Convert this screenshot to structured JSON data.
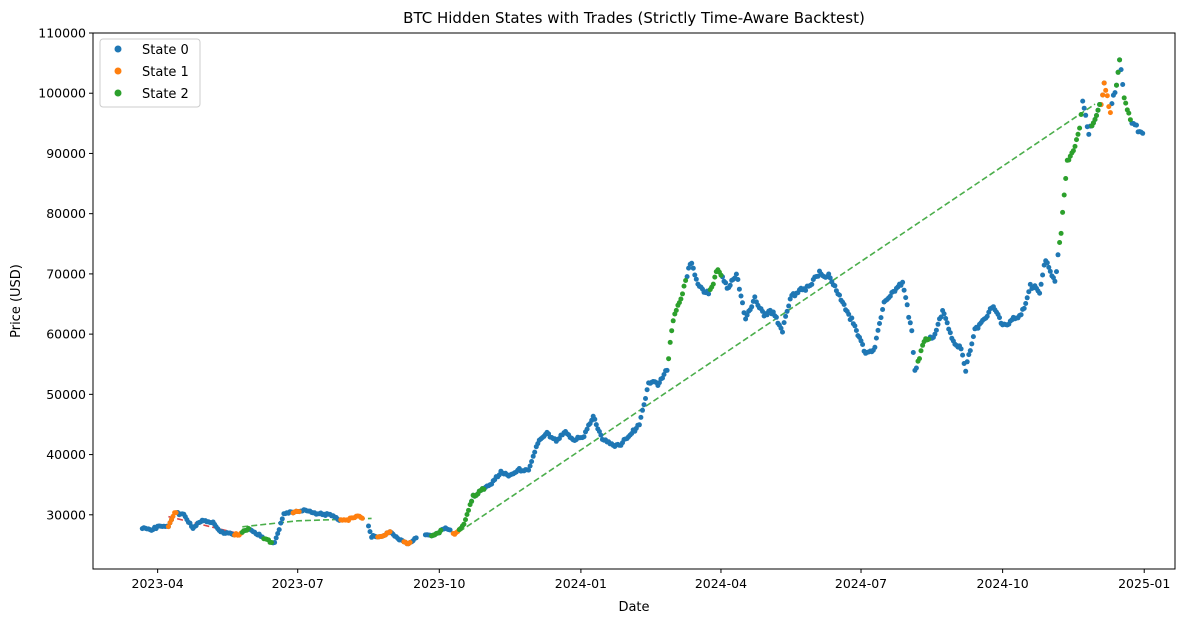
{
  "chart_data": {
    "type": "scatter",
    "title": "BTC Hidden States with Trades (Strictly Time-Aware Backtest)",
    "xlabel": "Date",
    "ylabel": "Price (USD)",
    "x_type": "date",
    "xlim": [
      "2023-02-18",
      "2025-01-21"
    ],
    "ylim": [
      21000,
      110000
    ],
    "x_ticks": [
      "2023-04-01",
      "2023-07-01",
      "2023-10-01",
      "2024-01-01",
      "2024-04-01",
      "2024-07-01",
      "2024-10-01",
      "2025-01-01"
    ],
    "x_tick_labels": [
      "2023-04",
      "2023-07",
      "2023-10",
      "2024-01",
      "2024-04",
      "2024-07",
      "2024-10",
      "2025-01"
    ],
    "y_ticks": [
      30000,
      40000,
      50000,
      60000,
      70000,
      80000,
      90000,
      100000,
      110000
    ],
    "y_tick_labels": [
      "30000",
      "40000",
      "50000",
      "60000",
      "70000",
      "80000",
      "90000",
      "100000",
      "110000"
    ],
    "grid": false,
    "legend_position": "top-left",
    "price_path": [
      [
        "2023-03-22",
        27800
      ],
      [
        "2023-03-28",
        27300
      ],
      [
        "2023-04-02",
        28300
      ],
      [
        "2023-04-08",
        28000
      ],
      [
        "2023-04-12",
        30200
      ],
      [
        "2023-04-18",
        30300
      ],
      [
        "2023-04-24",
        27600
      ],
      [
        "2023-04-30",
        29200
      ],
      [
        "2023-05-06",
        28900
      ],
      [
        "2023-05-12",
        27000
      ],
      [
        "2023-05-18",
        27100
      ],
      [
        "2023-05-24",
        26500
      ],
      [
        "2023-05-30",
        27800
      ],
      [
        "2023-06-05",
        26800
      ],
      [
        "2023-06-10",
        25800
      ],
      [
        "2023-06-16",
        25400
      ],
      [
        "2023-06-22",
        30000
      ],
      [
        "2023-06-28",
        30500
      ],
      [
        "2023-07-04",
        30800
      ],
      [
        "2023-07-10",
        30300
      ],
      [
        "2023-07-16",
        30300
      ],
      [
        "2023-07-22",
        29900
      ],
      [
        "2023-07-28",
        29300
      ],
      [
        "2023-08-03",
        29200
      ],
      [
        "2023-08-09",
        29700
      ],
      [
        "2023-08-15",
        29300
      ],
      [
        "2023-08-18",
        26400
      ],
      [
        "2023-08-24",
        26200
      ],
      [
        "2023-08-30",
        27400
      ],
      [
        "2023-09-05",
        25800
      ],
      [
        "2023-09-11",
        25200
      ],
      [
        "2023-09-17",
        26600
      ],
      [
        "2023-09-23",
        26500
      ],
      [
        "2023-09-29",
        26900
      ],
      [
        "2023-10-05",
        27700
      ],
      [
        "2023-10-11",
        26900
      ],
      [
        "2023-10-17",
        28400
      ],
      [
        "2023-10-23",
        33000
      ],
      [
        "2023-10-29",
        34400
      ],
      [
        "2023-11-04",
        35000
      ],
      [
        "2023-11-10",
        37300
      ],
      [
        "2023-11-16",
        36500
      ],
      [
        "2023-11-22",
        37400
      ],
      [
        "2023-11-28",
        37600
      ],
      [
        "2023-12-04",
        41800
      ],
      [
        "2023-12-10",
        43800
      ],
      [
        "2023-12-16",
        42100
      ],
      [
        "2023-12-22",
        43700
      ],
      [
        "2023-12-28",
        42500
      ],
      [
        "2024-01-03",
        42800
      ],
      [
        "2024-01-09",
        46600
      ],
      [
        "2024-01-15",
        42500
      ],
      [
        "2024-01-21",
        41600
      ],
      [
        "2024-01-27",
        41800
      ],
      [
        "2024-02-02",
        43100
      ],
      [
        "2024-02-08",
        45300
      ],
      [
        "2024-02-14",
        51800
      ],
      [
        "2024-02-20",
        51800
      ],
      [
        "2024-02-26",
        54400
      ],
      [
        "2024-03-01",
        62100
      ],
      [
        "2024-03-06",
        66000
      ],
      [
        "2024-03-12",
        72100
      ],
      [
        "2024-03-18",
        67500
      ],
      [
        "2024-03-24",
        67200
      ],
      [
        "2024-03-30",
        70400
      ],
      [
        "2024-04-05",
        67900
      ],
      [
        "2024-04-11",
        70000
      ],
      [
        "2024-04-17",
        62100
      ],
      [
        "2024-04-23",
        66400
      ],
      [
        "2024-04-29",
        62900
      ],
      [
        "2024-05-05",
        63800
      ],
      [
        "2024-05-11",
        60800
      ],
      [
        "2024-05-17",
        66300
      ],
      [
        "2024-05-23",
        67900
      ],
      [
        "2024-05-29",
        67600
      ],
      [
        "2024-06-04",
        70500
      ],
      [
        "2024-06-10",
        69600
      ],
      [
        "2024-06-16",
        66600
      ],
      [
        "2024-06-22",
        64100
      ],
      [
        "2024-06-28",
        60300
      ],
      [
        "2024-07-04",
        57000
      ],
      [
        "2024-07-10",
        57800
      ],
      [
        "2024-07-16",
        65000
      ],
      [
        "2024-07-22",
        67500
      ],
      [
        "2024-07-28",
        68200
      ],
      [
        "2024-08-03",
        60700
      ],
      [
        "2024-08-05",
        54000
      ],
      [
        "2024-08-11",
        58700
      ],
      [
        "2024-08-17",
        59500
      ],
      [
        "2024-08-23",
        64100
      ],
      [
        "2024-08-29",
        59000
      ],
      [
        "2024-09-04",
        57900
      ],
      [
        "2024-09-07",
        54000
      ],
      [
        "2024-09-13",
        60500
      ],
      [
        "2024-09-19",
        62900
      ],
      [
        "2024-09-25",
        64300
      ],
      [
        "2024-10-01",
        61600
      ],
      [
        "2024-10-07",
        62300
      ],
      [
        "2024-10-13",
        62800
      ],
      [
        "2024-10-19",
        68400
      ],
      [
        "2024-10-25",
        66600
      ],
      [
        "2024-10-29",
        72700
      ],
      [
        "2024-11-04",
        68800
      ],
      [
        "2024-11-08",
        76600
      ],
      [
        "2024-11-12",
        88700
      ],
      [
        "2024-11-16",
        91000
      ],
      [
        "2024-11-20",
        94300
      ],
      [
        "2024-11-22",
        98400
      ],
      [
        "2024-11-26",
        93000
      ],
      [
        "2024-11-30",
        96400
      ],
      [
        "2024-12-04",
        98800
      ],
      [
        "2024-12-06",
        101200
      ],
      [
        "2024-12-10",
        96600
      ],
      [
        "2024-12-14",
        101400
      ],
      [
        "2024-12-16",
        106000
      ],
      [
        "2024-12-20",
        97800
      ],
      [
        "2024-12-24",
        94700
      ],
      [
        "2024-12-27",
        94300
      ],
      [
        "2024-12-31",
        93400
      ]
    ],
    "series": [
      {
        "name": "State 0",
        "color": "#1f77b4",
        "segments": [
          [
            "2023-03-22",
            "2023-04-10"
          ],
          [
            "2023-04-14",
            "2023-05-20"
          ],
          [
            "2023-05-31",
            "2023-06-08"
          ],
          [
            "2023-06-15",
            "2023-07-28"
          ],
          [
            "2023-08-16",
            "2023-09-16"
          ],
          [
            "2023-09-22",
            "2023-10-08"
          ],
          [
            "2023-10-22",
            "2024-02-26"
          ],
          [
            "2024-03-10",
            "2024-03-24"
          ],
          [
            "2024-04-02",
            "2024-08-06"
          ],
          [
            "2024-08-15",
            "2024-11-06"
          ],
          [
            "2024-11-22",
            "2024-12-06"
          ],
          [
            "2024-12-11",
            "2024-12-18"
          ],
          [
            "2024-12-24",
            "2024-12-31"
          ]
        ]
      },
      {
        "name": "State 1",
        "color": "#ff7f0e",
        "segments": [
          [
            "2023-04-08",
            "2023-04-13"
          ],
          [
            "2023-05-21",
            "2023-05-25"
          ],
          [
            "2023-06-28",
            "2023-07-02"
          ],
          [
            "2023-07-29",
            "2023-08-12"
          ],
          [
            "2023-08-22",
            "2023-08-30"
          ],
          [
            "2023-09-08",
            "2023-09-12"
          ],
          [
            "2023-10-10",
            "2023-10-14"
          ],
          [
            "2024-12-04",
            "2024-12-10"
          ]
        ]
      },
      {
        "name": "State 2",
        "color": "#2ca02c",
        "segments": [
          [
            "2023-05-26",
            "2023-05-30"
          ],
          [
            "2023-06-09",
            "2023-06-14"
          ],
          [
            "2023-09-26",
            "2023-10-02"
          ],
          [
            "2023-10-14",
            "2023-10-30"
          ],
          [
            "2024-02-27",
            "2024-03-09"
          ],
          [
            "2024-03-25",
            "2024-04-01"
          ],
          [
            "2024-08-07",
            "2024-08-14"
          ],
          [
            "2024-11-07",
            "2024-11-21"
          ],
          [
            "2024-11-28",
            "2024-12-03"
          ],
          [
            "2024-12-14",
            "2024-12-16"
          ],
          [
            "2024-12-19",
            "2024-12-23"
          ]
        ]
      }
    ],
    "trades": [
      {
        "color": "#d62728",
        "points": [
          [
            "2023-04-08",
            29700
          ],
          [
            "2023-05-22",
            27000
          ]
        ]
      },
      {
        "color": "#2ca02c",
        "points": [
          [
            "2023-05-26",
            28000
          ],
          [
            "2023-07-01",
            29000
          ],
          [
            "2023-08-18",
            29400
          ]
        ]
      },
      {
        "color": "#2ca02c",
        "points": [
          [
            "2023-10-14",
            27200
          ],
          [
            "2024-11-30",
            98200
          ]
        ]
      }
    ]
  }
}
